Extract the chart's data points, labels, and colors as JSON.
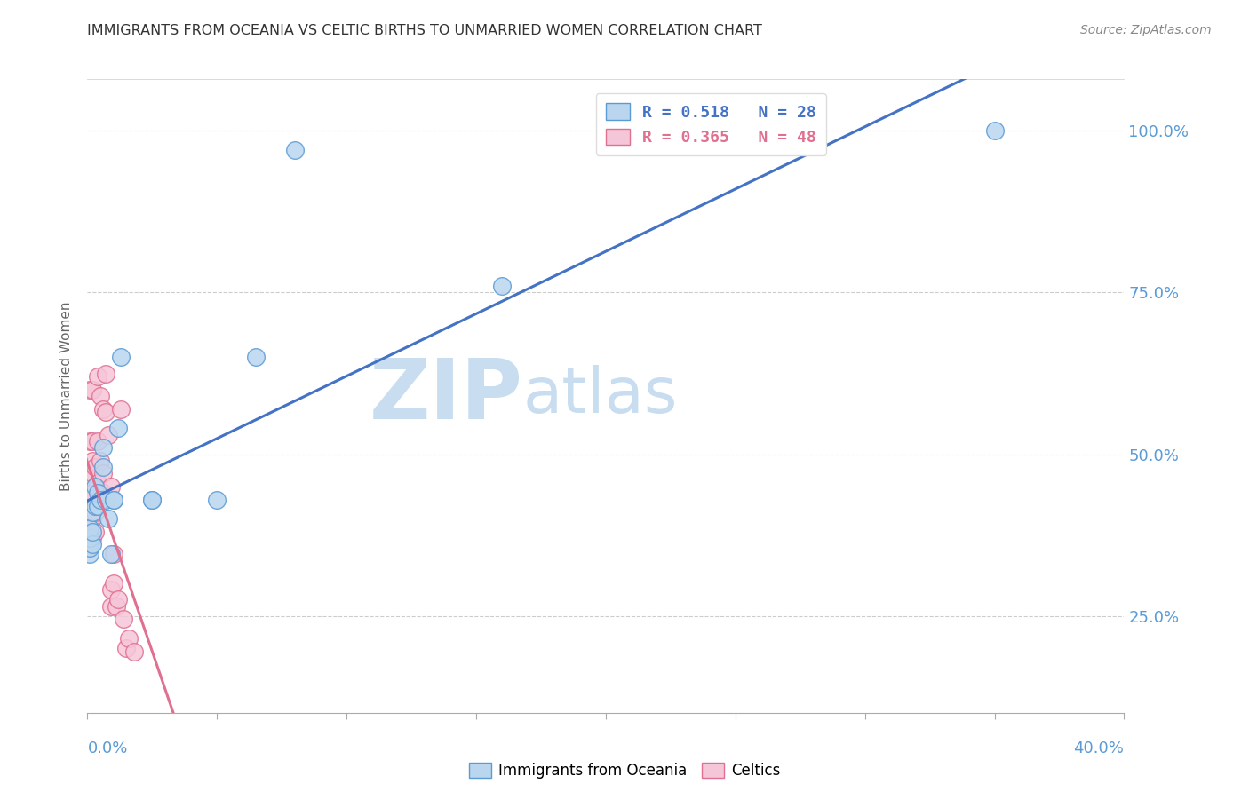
{
  "title": "IMMIGRANTS FROM OCEANIA VS CELTIC BIRTHS TO UNMARRIED WOMEN CORRELATION CHART",
  "source": "Source: ZipAtlas.com",
  "xlabel_bottom_left": "0.0%",
  "xlabel_bottom_right": "40.0%",
  "ylabel": "Births to Unmarried Women",
  "ytick_labels": [
    "100.0%",
    "75.0%",
    "50.0%",
    "25.0%"
  ],
  "ytick_values": [
    1.0,
    0.75,
    0.5,
    0.25
  ],
  "legend_line1": "R = 0.518   N = 28",
  "legend_line2": "R = 0.365   N = 48",
  "watermark_zip": "ZIP",
  "watermark_atlas": "atlas",
  "series1_color": "#bad6ef",
  "series1_edge_color": "#5b9bd5",
  "series2_color": "#f5c6d8",
  "series2_edge_color": "#e07090",
  "trendline1_color": "#4472c4",
  "trendline2_color": "#e07090",
  "oceania_x": [
    0.001,
    0.001,
    0.001,
    0.001,
    0.002,
    0.002,
    0.002,
    0.003,
    0.003,
    0.004,
    0.004,
    0.005,
    0.006,
    0.006,
    0.007,
    0.008,
    0.009,
    0.01,
    0.01,
    0.012,
    0.013,
    0.025,
    0.025,
    0.05,
    0.065,
    0.08,
    0.16,
    0.35
  ],
  "oceania_y": [
    0.345,
    0.355,
    0.37,
    0.385,
    0.36,
    0.38,
    0.41,
    0.42,
    0.45,
    0.42,
    0.44,
    0.43,
    0.48,
    0.51,
    0.43,
    0.4,
    0.345,
    0.43,
    0.43,
    0.54,
    0.65,
    0.43,
    0.43,
    0.43,
    0.65,
    0.97,
    0.76,
    1.0
  ],
  "celtics_x": [
    0.0002,
    0.0003,
    0.0005,
    0.0005,
    0.001,
    0.001,
    0.001,
    0.001,
    0.001,
    0.001,
    0.001,
    0.001,
    0.001,
    0.0015,
    0.002,
    0.002,
    0.002,
    0.002,
    0.002,
    0.002,
    0.002,
    0.003,
    0.003,
    0.003,
    0.004,
    0.004,
    0.004,
    0.005,
    0.005,
    0.005,
    0.006,
    0.006,
    0.006,
    0.007,
    0.007,
    0.008,
    0.009,
    0.009,
    0.009,
    0.01,
    0.01,
    0.011,
    0.012,
    0.013,
    0.014,
    0.015,
    0.016,
    0.018
  ],
  "celtics_y": [
    0.38,
    0.41,
    0.43,
    0.445,
    0.355,
    0.365,
    0.375,
    0.39,
    0.41,
    0.43,
    0.46,
    0.52,
    0.6,
    0.43,
    0.37,
    0.4,
    0.44,
    0.47,
    0.49,
    0.52,
    0.6,
    0.38,
    0.41,
    0.48,
    0.455,
    0.52,
    0.62,
    0.44,
    0.49,
    0.59,
    0.44,
    0.47,
    0.57,
    0.565,
    0.625,
    0.53,
    0.265,
    0.29,
    0.45,
    0.3,
    0.345,
    0.265,
    0.275,
    0.57,
    0.245,
    0.2,
    0.215,
    0.195
  ],
  "background_color": "#ffffff",
  "grid_color": "#cccccc",
  "title_color": "#333333",
  "axis_color": "#5b9bd5",
  "ymin": 0.1,
  "ymax": 1.08,
  "xmin": 0.0,
  "xmax": 0.4
}
